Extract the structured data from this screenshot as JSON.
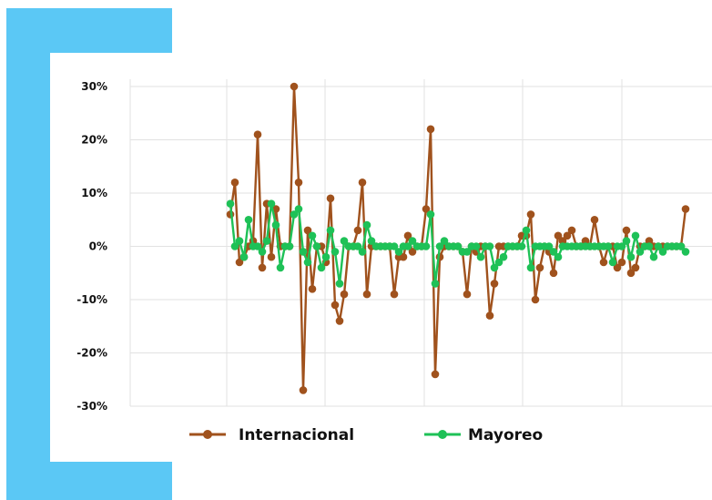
{
  "chart_data": {
    "type": "line",
    "title": "",
    "xlabel": "",
    "ylabel": "",
    "ylim": [
      -30,
      30
    ],
    "yticks": [
      30,
      20,
      10,
      0,
      -10,
      -20,
      -30
    ],
    "ytick_labels": [
      "30%",
      "20%",
      "10%",
      "0%",
      "-10%",
      "-20%",
      "-30%"
    ],
    "xlim": [
      0,
      100
    ],
    "grid": true,
    "legend_position": "bottom",
    "series": [
      {
        "name": "Internacional",
        "color": "#a0521d",
        "x": [
          0,
          1,
          2,
          3,
          4,
          5,
          6,
          7,
          8,
          9,
          10,
          11,
          12,
          13,
          14,
          15,
          16,
          17,
          18,
          19,
          20,
          21,
          22,
          23,
          24,
          25,
          26,
          27,
          28,
          29,
          30,
          31,
          32,
          33,
          34,
          35,
          36,
          37,
          38,
          39,
          40,
          41,
          42,
          43,
          44,
          45,
          46,
          47,
          48,
          49,
          50,
          51,
          52,
          53,
          54,
          55,
          56,
          57,
          58,
          59,
          60,
          61,
          62,
          63,
          64,
          65,
          66,
          67,
          68,
          69,
          70,
          71,
          72,
          73,
          74,
          75,
          76,
          77,
          78,
          79,
          80,
          81,
          82,
          83,
          84,
          85,
          86,
          87,
          88,
          89,
          90,
          91,
          92,
          93,
          94,
          95,
          96,
          97,
          98,
          99,
          100
        ],
        "values": [
          6,
          12,
          -3,
          -2,
          0,
          1,
          21,
          -4,
          8,
          -2,
          7,
          0,
          0,
          0,
          30,
          12,
          -27,
          3,
          -8,
          0,
          0,
          -3,
          9,
          -11,
          -14,
          -9,
          0,
          0,
          3,
          12,
          -9,
          0,
          0,
          0,
          0,
          0,
          -9,
          -2,
          -2,
          2,
          -1,
          0,
          0,
          7,
          22,
          -24,
          -2,
          0,
          0,
          0,
          0,
          -1,
          -9,
          0,
          -1,
          0,
          0,
          -13,
          -7,
          0,
          0,
          0,
          0,
          0,
          2,
          2,
          6,
          -10,
          -4,
          0,
          -1,
          -5,
          2,
          1,
          2,
          3,
          0,
          0,
          1,
          0,
          5,
          0,
          -3,
          0,
          0,
          -4,
          -3,
          3,
          -5,
          -4,
          0,
          0,
          1,
          0,
          0,
          0,
          0,
          0,
          0,
          0,
          7
        ]
      },
      {
        "name": "Mayoreo",
        "color": "#1ec157",
        "x": [
          0,
          1,
          2,
          3,
          4,
          5,
          6,
          7,
          8,
          9,
          10,
          11,
          12,
          13,
          14,
          15,
          16,
          17,
          18,
          19,
          20,
          21,
          22,
          23,
          24,
          25,
          26,
          27,
          28,
          29,
          30,
          31,
          32,
          33,
          34,
          35,
          36,
          37,
          38,
          39,
          40,
          41,
          42,
          43,
          44,
          45,
          46,
          47,
          48,
          49,
          50,
          51,
          52,
          53,
          54,
          55,
          56,
          57,
          58,
          59,
          60,
          61,
          62,
          63,
          64,
          65,
          66,
          67,
          68,
          69,
          70,
          71,
          72,
          73,
          74,
          75,
          76,
          77,
          78,
          79,
          80,
          81,
          82,
          83,
          84,
          85,
          86,
          87,
          88,
          89,
          90,
          91,
          92,
          93,
          94,
          95,
          96,
          97,
          98,
          99,
          100
        ],
        "values": [
          8,
          0,
          1,
          -2,
          5,
          0,
          0,
          -1,
          1,
          8,
          4,
          -4,
          0,
          0,
          6,
          7,
          -1,
          -3,
          2,
          0,
          -4,
          -2,
          3,
          -1,
          -7,
          1,
          0,
          0,
          0,
          -1,
          4,
          1,
          0,
          0,
          0,
          0,
          0,
          -1,
          0,
          0,
          1,
          0,
          0,
          0,
          6,
          -7,
          0,
          1,
          0,
          0,
          0,
          -1,
          -1,
          0,
          0,
          -2,
          0,
          0,
          -4,
          -3,
          -2,
          0,
          0,
          0,
          0,
          3,
          -4,
          0,
          0,
          0,
          0,
          -1,
          -2,
          0,
          0,
          0,
          0,
          0,
          0,
          0,
          0,
          0,
          0,
          0,
          -3,
          0,
          0,
          1,
          -2,
          2,
          -1,
          0,
          0,
          -2,
          0,
          -1,
          0,
          0,
          0,
          0,
          -1
        ]
      }
    ]
  }
}
